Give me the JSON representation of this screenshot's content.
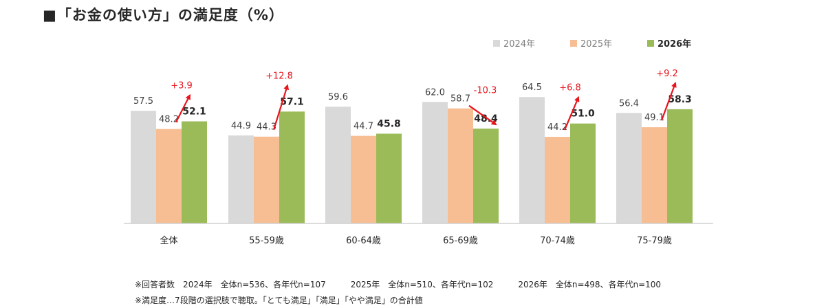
{
  "title": "■「お金の使い方」の満足度（%）",
  "colors": {
    "2024年": "#d9d9d9",
    "2025年": "#f8be93",
    "2026年": "#9bbb59",
    "arrow": "#e8141c"
  },
  "chart_data": {
    "type": "bar",
    "title": "■「お金の使い方」の満足度（%）",
    "categories": [
      "全体",
      "55-59歳",
      "60-64歳",
      "65-69歳",
      "70-74歳",
      "75-79歳"
    ],
    "series": [
      {
        "name": "2024年",
        "values": [
          57.5,
          44.9,
          59.6,
          62.0,
          64.5,
          56.4
        ],
        "labels": [
          "57.5",
          "44.9",
          "59.6",
          "62.0",
          "64.5",
          "56.4"
        ]
      },
      {
        "name": "2025年",
        "values": [
          48.2,
          44.3,
          44.7,
          58.7,
          44.2,
          49.1
        ],
        "labels": [
          "48.2",
          "44.3",
          "44.7",
          "58.7",
          "44.2",
          "49.1"
        ]
      },
      {
        "name": "2026年",
        "values": [
          52.1,
          57.1,
          45.8,
          48.4,
          51.0,
          58.3
        ],
        "labels": [
          "52.1",
          "57.1",
          "45.8",
          "48.4",
          "51.0",
          "58.3"
        ]
      }
    ],
    "changes": [
      "+3.9",
      "+12.8",
      "",
      "-10.3",
      "+6.8",
      "+9.2"
    ],
    "xlabel": "",
    "ylabel": "",
    "ylim": [
      0,
      70
    ],
    "grid": false,
    "legend": "top-right"
  },
  "notes": [
    "※回答者数　2024年　全体n=536、各年代n=107　　　2025年　全体n=510、各年代n=102　　　2026年　全体n=498、各年代n=100",
    "※満足度…7段階の選択肢で聴取。「とても満足」「満足」「やや満足」の合計値"
  ]
}
